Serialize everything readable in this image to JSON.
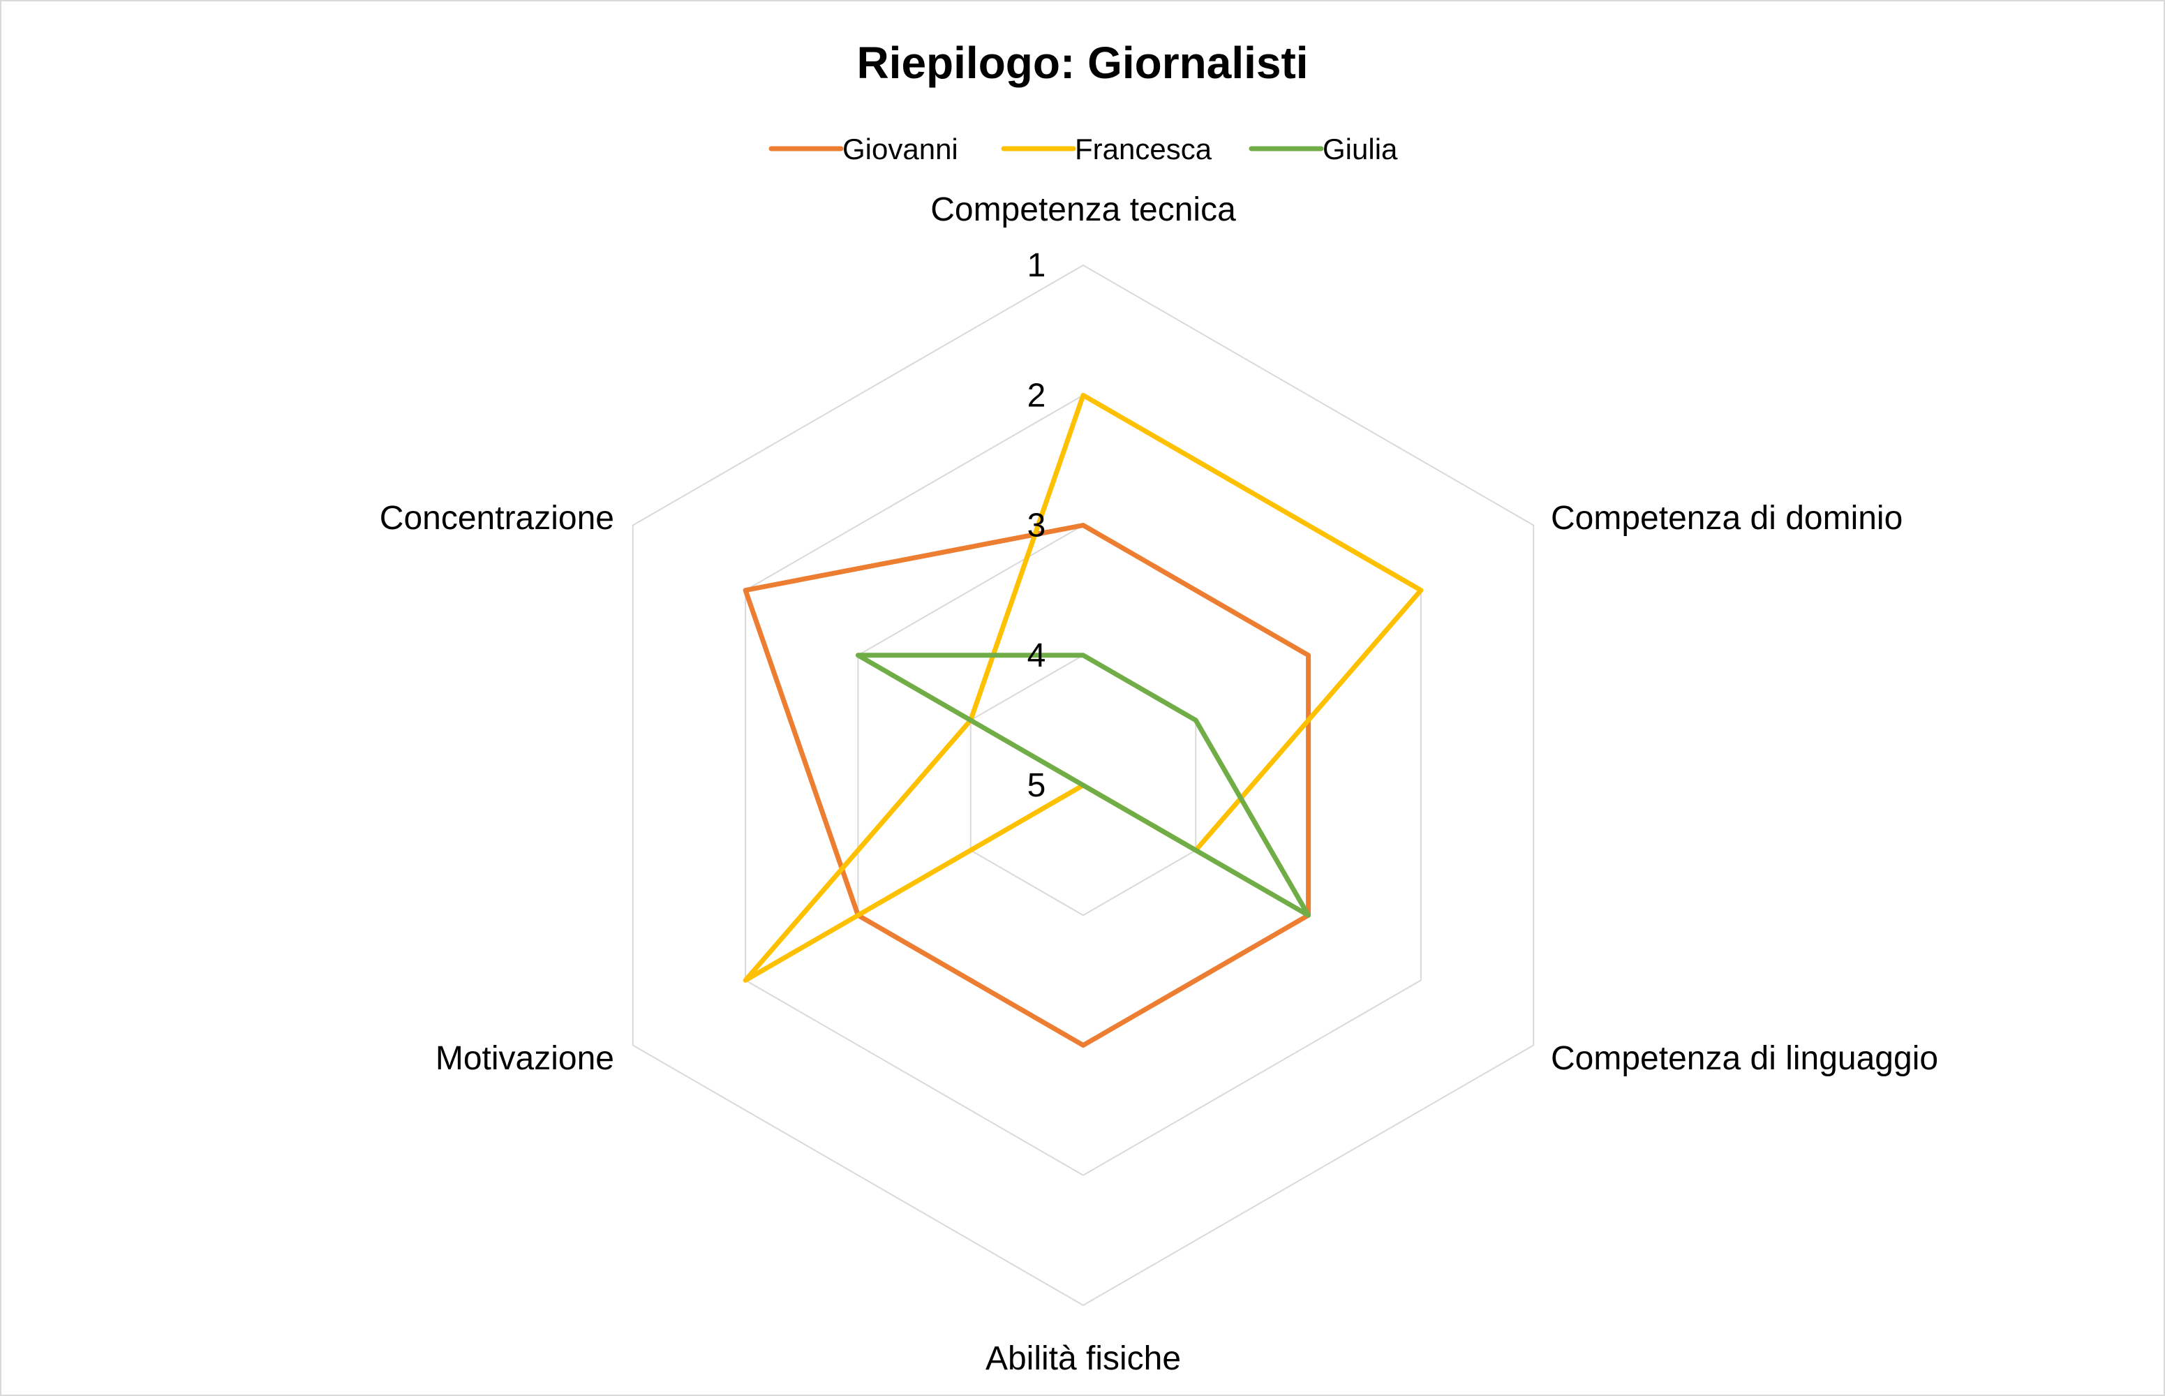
{
  "chart_data": {
    "type": "radar",
    "title": "Riepilogo: Giornalisti",
    "categories": [
      "Competenza tecnica",
      "Competenza di dominio",
      "Competenza di linguaggio",
      "Abilità fisiche",
      "Motivazione",
      "Concentrazione"
    ],
    "axis": {
      "reversed": true,
      "min": 1,
      "max": 5,
      "ticks": [
        1,
        2,
        3,
        4,
        5
      ]
    },
    "series": [
      {
        "name": "Giovanni",
        "color": "#ED7D31",
        "values": [
          3,
          3,
          3,
          3,
          3,
          2
        ]
      },
      {
        "name": "Francesca",
        "color": "#FFC000",
        "values": [
          2,
          2,
          4,
          5,
          2,
          4
        ]
      },
      {
        "name": "Giulia",
        "color": "#70AD47",
        "values": [
          4,
          4,
          3,
          5,
          5,
          3
        ]
      }
    ],
    "legend_position": "top",
    "gridlines": true
  }
}
